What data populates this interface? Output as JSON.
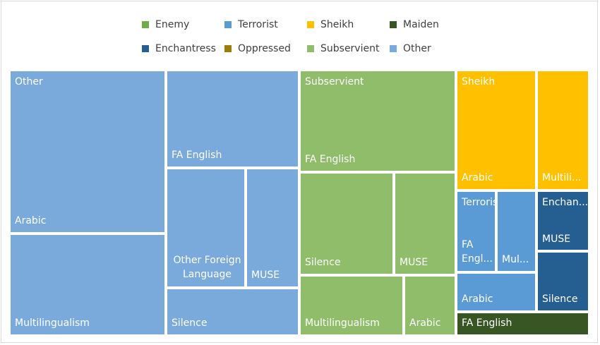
{
  "chart_data": {
    "type": "treemap",
    "legend_position": "top",
    "legend": [
      {
        "name": "Enemy",
        "color": "#70ad47"
      },
      {
        "name": "Terrorist",
        "color": "#5b9bd5"
      },
      {
        "name": "Sheikh",
        "color": "#ffc000"
      },
      {
        "name": "Maiden",
        "color": "#375623"
      },
      {
        "name": "Enchantress",
        "color": "#255e91"
      },
      {
        "name": "Oppressed",
        "color": "#9e7c0a"
      },
      {
        "name": "Subservient",
        "color": "#8fbd6a"
      },
      {
        "name": "Other",
        "color": "#7aa9db"
      }
    ],
    "groups": [
      {
        "name": "Other",
        "color": "#7aa9db",
        "children": [
          {
            "name": "Arabic",
            "label": "Arabic",
            "value": 21.1
          },
          {
            "name": "Multilingualism",
            "label": "Multilingualism",
            "value": 12.6
          },
          {
            "name": "FA English",
            "label": "FA English",
            "value": 12.5
          },
          {
            "name": "Other Foreign Language",
            "label": "Other Foreign Language",
            "value": 8.0
          },
          {
            "name": "MUSE",
            "label": "MUSE",
            "value": 5.2
          },
          {
            "name": "Silence",
            "label": "Silence",
            "value": 5.1
          }
        ]
      },
      {
        "name": "Subservient",
        "color": "#8fbd6a",
        "children": [
          {
            "name": "FA English",
            "label": "FA English",
            "value": 14.4
          },
          {
            "name": "Silence",
            "label": "Silence",
            "value": 9.3
          },
          {
            "name": "MUSE",
            "label": "MUSE",
            "value": 5.8
          },
          {
            "name": "Multilingualism",
            "label": "Multilingualism",
            "value": 7.0
          },
          {
            "name": "Arabic",
            "label": "Arabic",
            "value": 3.5
          }
        ]
      },
      {
        "name": "Sheikh",
        "color": "#ffc000",
        "children": [
          {
            "name": "Arabic",
            "label": "Arabic",
            "value": 8.5
          },
          {
            "name": "Multilingualism",
            "label": "Multili...",
            "value": 5.2
          }
        ]
      },
      {
        "name": "Terrorist",
        "color": "#5b9bd5",
        "children": [
          {
            "name": "FA English",
            "label": "FA Engl...",
            "value": 2.8
          },
          {
            "name": "Multilingualism",
            "label": "Mul...",
            "value": 2.6
          },
          {
            "name": "Arabic",
            "label": "Arabic",
            "value": 2.6
          }
        ]
      },
      {
        "name": "Enchantress",
        "color": "#255e91",
        "children": [
          {
            "name": "MUSE",
            "label": "MUSE",
            "value": 2.5
          },
          {
            "name": "Silence",
            "label": "Silence",
            "value": 3.3
          }
        ]
      },
      {
        "name": "Maiden",
        "color": "#375623",
        "children": [
          {
            "name": "FA English",
            "label": "FA English",
            "value": 2.3
          }
        ]
      }
    ],
    "group_label_texts": {
      "Other": "Other",
      "Subservient": "Subservient",
      "Sheikh": "Sheikh",
      "Terrorist": "Terrorist",
      "Enchantress": "Enchan..."
    }
  }
}
